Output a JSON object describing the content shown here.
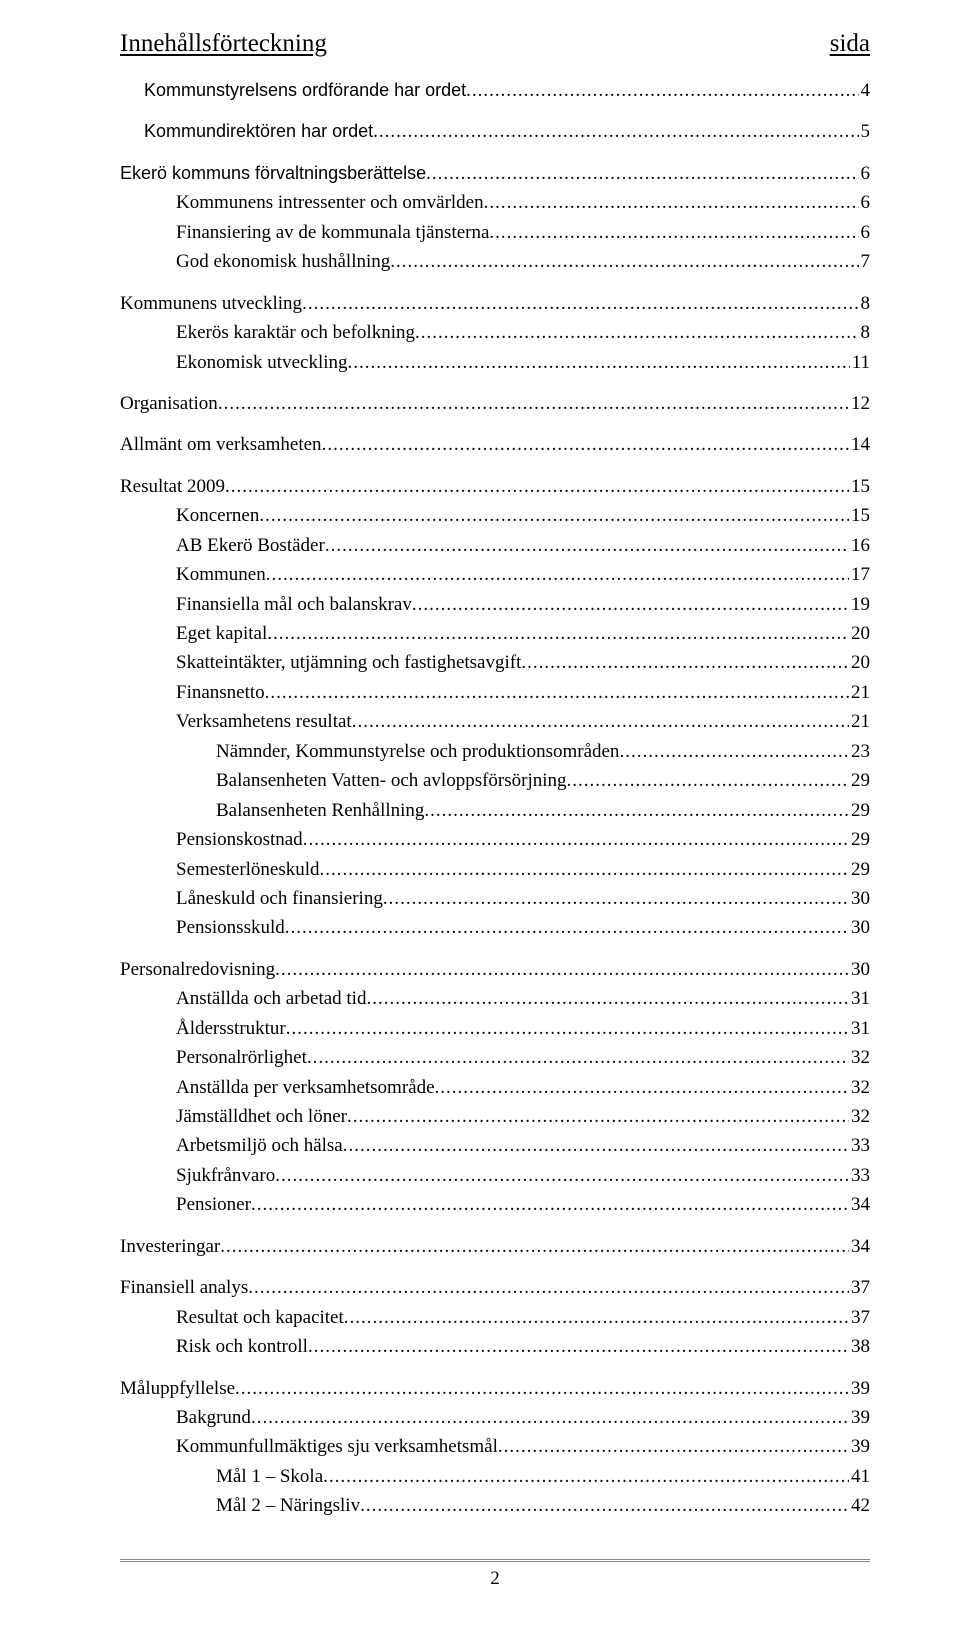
{
  "header": {
    "title": "Innehållsförteckning",
    "right": "sida"
  },
  "toc": [
    {
      "level": 0,
      "style": "section",
      "label": "Kommunstyrelsens ordförande har ordet",
      "page": "4"
    },
    {
      "level": 0,
      "style": "section",
      "label": "Kommundirektören har ordet",
      "page": "5"
    },
    {
      "level": 0,
      "style": "section",
      "label": "Ekerö kommuns förvaltningsberättelse",
      "page": "6",
      "flush": true
    },
    {
      "level": 1,
      "style": "plain",
      "label": "Kommunens intressenter och omvärlden",
      "page": "6"
    },
    {
      "level": 1,
      "style": "plain",
      "label": "Finansiering av de kommunala tjänsterna",
      "page": "6"
    },
    {
      "level": 1,
      "style": "plain",
      "label": "God ekonomisk hushållning",
      "page": "7"
    },
    {
      "level": 0,
      "style": "plain",
      "label": "Kommunens utveckling",
      "page": "8",
      "flush": true
    },
    {
      "level": 1,
      "style": "plain",
      "label": "Ekerös karaktär och befolkning",
      "page": "8"
    },
    {
      "level": 1,
      "style": "plain",
      "label": "Ekonomisk utveckling",
      "page": "11"
    },
    {
      "level": 0,
      "style": "plain",
      "label": "Organisation",
      "page": "12",
      "flush": true
    },
    {
      "level": 0,
      "style": "plain",
      "label": "Allmänt om verksamheten",
      "page": "14",
      "flush": true
    },
    {
      "level": 0,
      "style": "plain",
      "label": "Resultat 2009",
      "page": "15",
      "flush": true
    },
    {
      "level": 1,
      "style": "plain",
      "label": "Koncernen",
      "page": "15"
    },
    {
      "level": 1,
      "style": "plain",
      "label": "AB Ekerö Bostäder",
      "page": "16"
    },
    {
      "level": 1,
      "style": "plain",
      "label": "Kommunen",
      "page": "17"
    },
    {
      "level": 1,
      "style": "plain",
      "label": "Finansiella mål och balanskrav",
      "page": "19"
    },
    {
      "level": 1,
      "style": "plain",
      "label": "Eget kapital",
      "page": "20"
    },
    {
      "level": 1,
      "style": "plain",
      "label": "Skatteintäkter, utjämning och fastighetsavgift",
      "page": "20"
    },
    {
      "level": 1,
      "style": "plain",
      "label": "Finansnetto",
      "page": "21"
    },
    {
      "level": 1,
      "style": "plain",
      "label": "Verksamhetens resultat",
      "page": "21"
    },
    {
      "level": 2,
      "style": "plain",
      "label": "Nämnder, Kommunstyrelse och produktionsområden",
      "page": "23"
    },
    {
      "level": 2,
      "style": "plain",
      "label": "Balansenheten Vatten- och avloppsförsörjning",
      "page": "29"
    },
    {
      "level": 2,
      "style": "plain",
      "label": "Balansenheten Renhållning",
      "page": "29"
    },
    {
      "level": 1,
      "style": "plain",
      "label": "Pensionskostnad",
      "page": "29"
    },
    {
      "level": 1,
      "style": "plain",
      "label": "Semesterlöneskuld",
      "page": "29"
    },
    {
      "level": 1,
      "style": "plain",
      "label": "Låneskuld och finansiering",
      "page": "30"
    },
    {
      "level": 1,
      "style": "plain",
      "label": "Pensionsskuld",
      "page": "30"
    },
    {
      "level": 0,
      "style": "plain",
      "label": "Personalredovisning",
      "page": "30",
      "flush": true
    },
    {
      "level": 1,
      "style": "plain",
      "label": "Anställda och arbetad tid",
      "page": "31"
    },
    {
      "level": 1,
      "style": "plain",
      "label": "Åldersstruktur",
      "page": "31"
    },
    {
      "level": 1,
      "style": "plain",
      "label": "Personalrörlighet",
      "page": "32"
    },
    {
      "level": 1,
      "style": "plain",
      "label": "Anställda per verksamhetsområde",
      "page": "32"
    },
    {
      "level": 1,
      "style": "plain",
      "label": "Jämställdhet och löner",
      "page": "32"
    },
    {
      "level": 1,
      "style": "plain",
      "label": "Arbetsmiljö och hälsa",
      "page": "33"
    },
    {
      "level": 1,
      "style": "plain",
      "label": "Sjukfrånvaro",
      "page": "33"
    },
    {
      "level": 1,
      "style": "plain",
      "label": "Pensioner",
      "page": "34"
    },
    {
      "level": 0,
      "style": "plain",
      "label": "Investeringar",
      "page": "34",
      "flush": true
    },
    {
      "level": 0,
      "style": "plain",
      "label": "Finansiell analys",
      "page": "37",
      "flush": true
    },
    {
      "level": 1,
      "style": "plain",
      "label": "Resultat och kapacitet",
      "page": "37"
    },
    {
      "level": 1,
      "style": "plain",
      "label": "Risk och kontroll",
      "page": "38"
    },
    {
      "level": 0,
      "style": "plain",
      "label": "Måluppfyllelse",
      "page": "39",
      "flush": true
    },
    {
      "level": 1,
      "style": "plain",
      "label": "Bakgrund",
      "page": "39"
    },
    {
      "level": 1,
      "style": "plain",
      "label": "Kommunfullmäktiges sju verksamhetsmål",
      "page": "39"
    },
    {
      "level": 2,
      "style": "plain",
      "label": "Mål 1 – Skola",
      "page": "41"
    },
    {
      "level": 2,
      "style": "plain",
      "label": "Mål 2 – Näringsliv",
      "page": "42"
    }
  ],
  "footer": {
    "page_number": "2"
  }
}
